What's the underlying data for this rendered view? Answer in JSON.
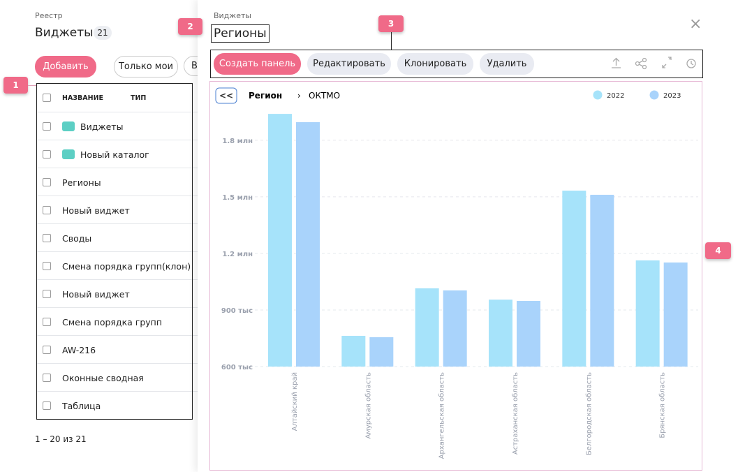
{
  "registry": {
    "breadcrumb": "Реестр",
    "title": "Виджеты",
    "count": 21,
    "buttons": [
      "Добавить",
      "Только мои",
      "В"
    ],
    "columns": [
      "НАЗВАНИЕ",
      "ТИП"
    ],
    "rows": [
      "Виджеты",
      "Новый каталог",
      "Регионы",
      "Новый виджет",
      "Своды",
      "Смена порядка групп(клон)",
      "Новый виджет",
      "Смена порядка групп",
      "AW-216",
      "Оконные сводная",
      "Таблица"
    ],
    "pagination": "1 – 20 из 21"
  },
  "panel": {
    "breadcrumb": "Виджеты",
    "title": "Регионы",
    "buttons": [
      "Создать панель",
      "Редактировать",
      "Клонировать",
      "Удалить"
    ]
  },
  "annotations": [
    "1",
    "2",
    "3",
    "4"
  ],
  "chart_data": {
    "type": "bar",
    "back_button": "<<",
    "breadcrumb": [
      "Регион",
      "ОКТМО"
    ],
    "categories": [
      "Алтайский край",
      "Амурская область",
      "Архангельская область",
      "Астраханская область",
      "Белгородская область",
      "Брянская область"
    ],
    "series": [
      {
        "name": "2022",
        "color": "#a6e3fa",
        "values": [
          1940000,
          763000,
          1015000,
          955000,
          1533000,
          1163000
        ]
      },
      {
        "name": "2023",
        "color": "#a9d3fb",
        "values": [
          1896000,
          756000,
          1004000,
          948000,
          1511000,
          1152000
        ]
      }
    ],
    "ylim": [
      600000,
      1970000
    ],
    "yticks": [
      {
        "value": 600000,
        "label": "600 тыс"
      },
      {
        "value": 900000,
        "label": "900 тыс"
      },
      {
        "value": 1200000,
        "label": "1.2 млн"
      },
      {
        "value": 1500000,
        "label": "1.5 млн"
      },
      {
        "value": 1800000,
        "label": "1.8 млн"
      }
    ],
    "grid": true
  }
}
